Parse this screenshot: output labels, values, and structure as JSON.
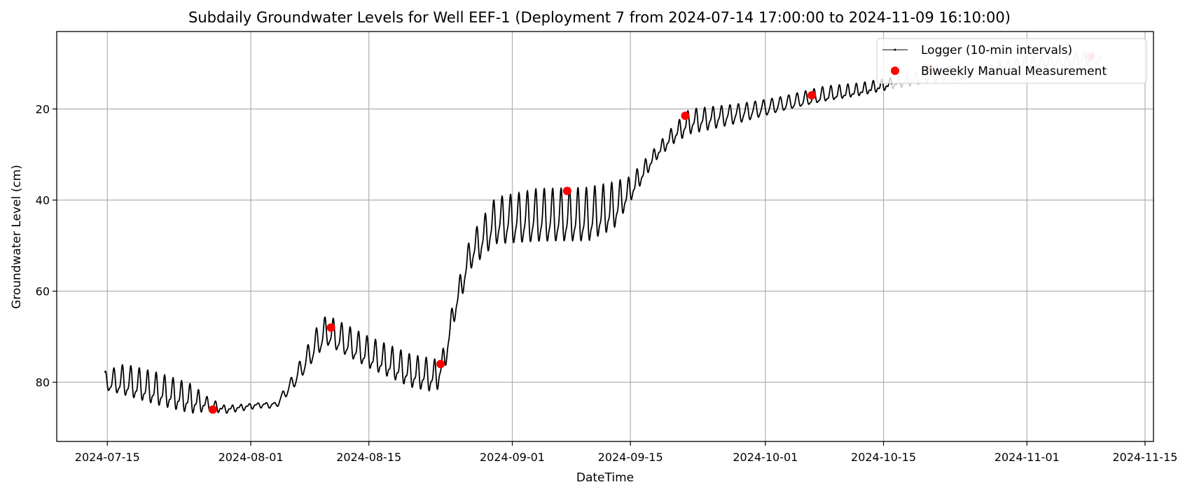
{
  "chart_data": {
    "type": "line",
    "title": "Subdaily Groundwater Levels for Well EEF-1 (Deployment 7 from 2024-07-14 17:00:00 to 2024-11-09 16:10:00)",
    "xlabel": "DateTime",
    "ylabel": "Groundwater Level (cm)",
    "x_range": [
      "2024-07-09",
      "2024-11-16"
    ],
    "ylim": [
      93,
      3
    ],
    "y_inverted": true,
    "grid": true,
    "legend_position": "top-right",
    "x_ticks": [
      "2024-07-15",
      "2024-08-01",
      "2024-08-15",
      "2024-09-01",
      "2024-09-15",
      "2024-10-01",
      "2024-10-15",
      "2024-11-01",
      "2024-11-15"
    ],
    "y_ticks": [
      20,
      40,
      60,
      80
    ],
    "series": [
      {
        "name": "Logger (10-min intervals)",
        "color": "#000000",
        "secondary_color": "#c8c8c8",
        "style": "line",
        "interval": "10-min",
        "daily_oscillation": true,
        "points": [
          {
            "date": "2024-07-14",
            "level": 80,
            "amp": 2
          },
          {
            "date": "2024-07-17",
            "level": 80,
            "amp": 4
          },
          {
            "date": "2024-07-21",
            "level": 82,
            "amp": 4
          },
          {
            "date": "2024-07-25",
            "level": 84,
            "amp": 3.5
          },
          {
            "date": "2024-07-27",
            "level": 85,
            "amp": 1.5
          },
          {
            "date": "2024-07-29",
            "level": 86,
            "amp": 0.8
          },
          {
            "date": "2024-08-02",
            "level": 85,
            "amp": 0.6
          },
          {
            "date": "2024-08-04",
            "level": 85,
            "amp": 0.8
          },
          {
            "date": "2024-08-06",
            "level": 80,
            "amp": 2
          },
          {
            "date": "2024-08-09",
            "level": 71,
            "amp": 4
          },
          {
            "date": "2024-08-10",
            "level": 69,
            "amp": 4
          },
          {
            "date": "2024-08-15",
            "level": 74,
            "amp": 4
          },
          {
            "date": "2024-08-20",
            "level": 78,
            "amp": 4
          },
          {
            "date": "2024-08-23",
            "level": 79,
            "amp": 4
          },
          {
            "date": "2024-08-24",
            "level": 75,
            "amp": 3
          },
          {
            "date": "2024-08-25",
            "level": 65,
            "amp": 3
          },
          {
            "date": "2024-08-27",
            "level": 52,
            "amp": 4
          },
          {
            "date": "2024-08-30",
            "level": 45,
            "amp": 6
          },
          {
            "date": "2024-09-04",
            "level": 44,
            "amp": 7
          },
          {
            "date": "2024-09-10",
            "level": 44,
            "amp": 7
          },
          {
            "date": "2024-09-13",
            "level": 42,
            "amp": 6
          },
          {
            "date": "2024-09-15",
            "level": 38,
            "amp": 3
          },
          {
            "date": "2024-09-18",
            "level": 30,
            "amp": 1.5
          },
          {
            "date": "2024-09-20",
            "level": 26,
            "amp": 2
          },
          {
            "date": "2024-09-22",
            "level": 23,
            "amp": 3
          },
          {
            "date": "2024-09-28",
            "level": 21,
            "amp": 2.5
          },
          {
            "date": "2024-10-03",
            "level": 19,
            "amp": 2
          },
          {
            "date": "2024-10-08",
            "level": 17,
            "amp": 2
          },
          {
            "date": "2024-10-12",
            "level": 16,
            "amp": 1.5
          },
          {
            "date": "2024-10-16",
            "level": 14.5,
            "amp": 1.2
          },
          {
            "date": "2024-10-20",
            "level": 13,
            "amp": 1.5
          },
          {
            "date": "2024-10-26",
            "level": 12,
            "amp": 1.5
          },
          {
            "date": "2024-11-01",
            "level": 10,
            "amp": 1.8
          },
          {
            "date": "2024-11-09",
            "level": 9,
            "amp": 1.5
          }
        ]
      },
      {
        "name": "Biweekly Manual Measurement",
        "color": "#ff0000",
        "style": "scatter",
        "points": [
          {
            "date": "2024-07-27",
            "level": 86
          },
          {
            "date": "2024-08-10",
            "level": 68
          },
          {
            "date": "2024-08-23",
            "level": 76
          },
          {
            "date": "2024-09-07",
            "level": 38
          },
          {
            "date": "2024-09-21",
            "level": 21.5
          },
          {
            "date": "2024-10-06",
            "level": 17
          },
          {
            "date": "2024-10-20",
            "level": 11
          },
          {
            "date": "2024-11-08",
            "level": 8.5
          }
        ]
      }
    ]
  }
}
